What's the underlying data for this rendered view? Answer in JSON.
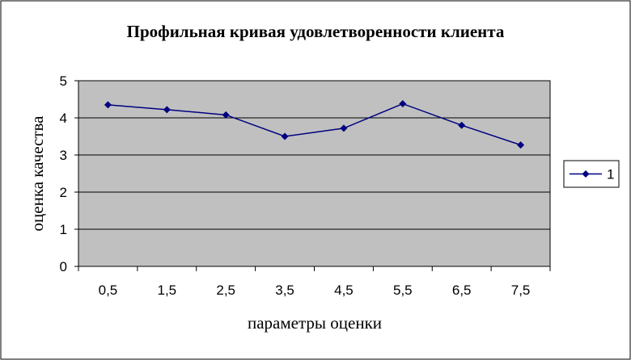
{
  "colors": {
    "plot_background": "#c0c0c0",
    "series_line": "#000080",
    "gridline": "#000000",
    "frame": "#000000"
  },
  "chart_data": {
    "type": "line",
    "title": "Профильная кривая удовлетворенности клиента",
    "xlabel": "параметры оценки",
    "ylabel": "оценка качества",
    "categories": [
      "0,5",
      "1,5",
      "2,5",
      "3,5",
      "4,5",
      "5,5",
      "6,5",
      "7,5"
    ],
    "series": [
      {
        "name": "1",
        "values": [
          4.35,
          4.22,
          4.08,
          3.5,
          3.72,
          4.38,
          3.8,
          3.27
        ],
        "marker": "diamond"
      }
    ],
    "ylim": [
      0,
      5
    ],
    "yticks": [
      "0",
      "1",
      "2",
      "3",
      "4",
      "5"
    ],
    "grid": true,
    "legend_position": "right"
  }
}
